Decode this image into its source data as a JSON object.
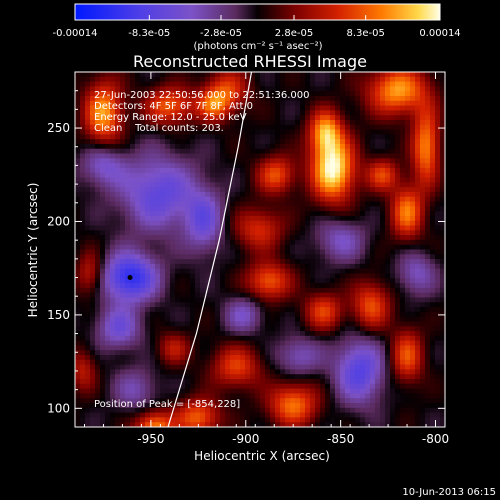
{
  "chart_data": {
    "type": "heatmap",
    "title": "Reconstructed RHESSI Image",
    "xlabel": "Heliocentric X (arcsec)",
    "ylabel": "Heliocentric Y (arcsec)",
    "xlim": [
      -990,
      -795
    ],
    "ylim": [
      90,
      280
    ],
    "xticks": [
      -950,
      -900,
      -850,
      -800
    ],
    "yticks": [
      100,
      150,
      200,
      250
    ],
    "colorbar": {
      "min": -0.00014,
      "max": 0.00014,
      "tick_values": [
        -0.00014,
        -8.3e-05,
        -2.8e-05,
        2.8e-05,
        8.3e-05,
        0.00014
      ],
      "tick_labels": [
        "-0.00014",
        "-8.3e-05",
        "-2.8e-05",
        "2.8e-05",
        "8.3e-05",
        "0.00014"
      ],
      "units": "(photons cm⁻² s⁻¹ asec⁻²)"
    },
    "info_lines": [
      "27-Jun-2003 22:50:56.000 to 22:51:36.000",
      "Detectors: 4F 5F 6F 7F 8F, Att 0",
      "Energy Range: 12.0 - 25.0 keV",
      "Clean    Total counts: 203."
    ],
    "peak_text": "Position of Peak = [-854,228]",
    "peak": {
      "x": -854,
      "y": 228
    },
    "min_marker": {
      "x": -961,
      "y": 170
    },
    "limb_x_at_y": [
      [
        -941,
        90
      ],
      [
        -926,
        140
      ],
      [
        -914,
        190
      ],
      [
        -904,
        240
      ],
      [
        -897,
        280
      ]
    ],
    "sources": [
      {
        "x": -854,
        "y": 228,
        "amp": 1.0,
        "sx": 8,
        "sy": 12
      },
      {
        "x": -858,
        "y": 248,
        "amp": 0.7,
        "sx": 6,
        "sy": 8
      },
      {
        "x": -975,
        "y": 258,
        "amp": 0.75,
        "sx": 7,
        "sy": 12
      },
      {
        "x": -940,
        "y": 262,
        "amp": 0.6,
        "sx": 9,
        "sy": 7
      },
      {
        "x": -910,
        "y": 270,
        "amp": 0.5,
        "sx": 8,
        "sy": 8
      },
      {
        "x": -820,
        "y": 270,
        "amp": 0.75,
        "sx": 11,
        "sy": 9
      },
      {
        "x": -805,
        "y": 240,
        "amp": 0.7,
        "sx": 5,
        "sy": 14
      },
      {
        "x": -815,
        "y": 205,
        "amp": 0.65,
        "sx": 6,
        "sy": 10
      },
      {
        "x": -884,
        "y": 225,
        "amp": 0.55,
        "sx": 7,
        "sy": 7
      },
      {
        "x": -893,
        "y": 196,
        "amp": 0.45,
        "sx": 9,
        "sy": 8
      },
      {
        "x": -888,
        "y": 168,
        "amp": 0.6,
        "sx": 8,
        "sy": 7
      },
      {
        "x": -859,
        "y": 152,
        "amp": 0.5,
        "sx": 7,
        "sy": 7
      },
      {
        "x": -834,
        "y": 155,
        "amp": 0.55,
        "sx": 7,
        "sy": 9
      },
      {
        "x": -815,
        "y": 128,
        "amp": 0.55,
        "sx": 6,
        "sy": 10
      },
      {
        "x": -875,
        "y": 102,
        "amp": 0.65,
        "sx": 9,
        "sy": 8
      },
      {
        "x": -905,
        "y": 122,
        "amp": 0.5,
        "sx": 9,
        "sy": 8
      },
      {
        "x": -925,
        "y": 95,
        "amp": 0.6,
        "sx": 8,
        "sy": 7
      },
      {
        "x": -948,
        "y": 90,
        "amp": 0.7,
        "sx": 7,
        "sy": 6
      },
      {
        "x": -982,
        "y": 172,
        "amp": 0.4,
        "sx": 5,
        "sy": 8
      },
      {
        "x": -986,
        "y": 120,
        "amp": 0.35,
        "sx": 5,
        "sy": 8
      },
      {
        "x": -917,
        "y": 262,
        "amp": 0.5,
        "sx": 6,
        "sy": 6
      },
      {
        "x": -938,
        "y": 132,
        "amp": 0.35,
        "sx": 6,
        "sy": 6
      },
      {
        "x": -828,
        "y": 225,
        "amp": 0.5,
        "sx": 6,
        "sy": 6
      },
      {
        "x": -961,
        "y": 170,
        "amp": -0.8,
        "sx": 10,
        "sy": 9
      },
      {
        "x": -946,
        "y": 215,
        "amp": -0.55,
        "sx": 14,
        "sy": 14
      },
      {
        "x": -967,
        "y": 143,
        "amp": -0.45,
        "sx": 8,
        "sy": 8
      },
      {
        "x": -840,
        "y": 120,
        "amp": -0.6,
        "sx": 9,
        "sy": 12
      },
      {
        "x": -922,
        "y": 200,
        "amp": -0.45,
        "sx": 7,
        "sy": 12
      },
      {
        "x": -850,
        "y": 190,
        "amp": -0.35,
        "sx": 9,
        "sy": 8
      },
      {
        "x": -872,
        "y": 128,
        "amp": -0.35,
        "sx": 8,
        "sy": 7
      },
      {
        "x": -901,
        "y": 150,
        "amp": -0.35,
        "sx": 7,
        "sy": 7
      },
      {
        "x": -975,
        "y": 230,
        "amp": -0.4,
        "sx": 8,
        "sy": 8
      },
      {
        "x": -810,
        "y": 172,
        "amp": -0.35,
        "sx": 7,
        "sy": 8
      },
      {
        "x": -958,
        "y": 110,
        "amp": -0.3,
        "sx": 8,
        "sy": 8
      }
    ],
    "grid": false,
    "legend": "none"
  },
  "footer": {
    "timestamp": "10-Jun-2013 06:15"
  }
}
